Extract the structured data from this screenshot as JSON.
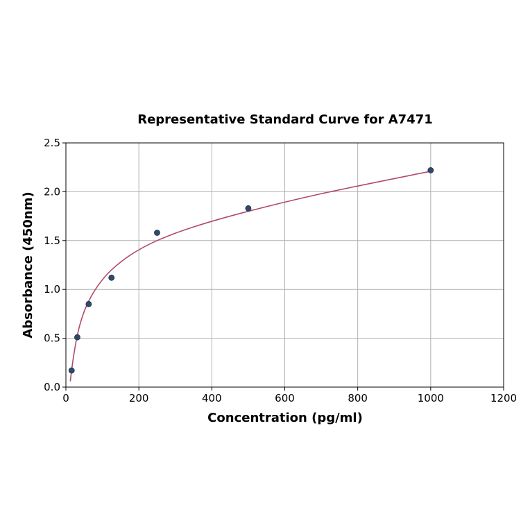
{
  "chart_data": {
    "type": "scatter",
    "title": "Representative Standard Curve for A7471",
    "xlabel": "Concentration (pg/ml)",
    "ylabel": "Absorbance (450nm)",
    "xlim": [
      0,
      1200
    ],
    "ylim": [
      0,
      2.5
    ],
    "xticks": [
      "0",
      "200",
      "400",
      "600",
      "800",
      "1000",
      "1200"
    ],
    "yticks": [
      "0.0",
      "0.5",
      "1.0",
      "1.5",
      "2.0",
      "2.5"
    ],
    "grid": true,
    "legend": "none",
    "series": [
      {
        "points": [
          {
            "x": 15.6,
            "y": 0.17
          },
          {
            "x": 31.25,
            "y": 0.51
          },
          {
            "x": 62.5,
            "y": 0.85
          },
          {
            "x": 125,
            "y": 1.12
          },
          {
            "x": 250,
            "y": 1.58
          },
          {
            "x": 500,
            "y": 1.83
          },
          {
            "x": 1000,
            "y": 2.22
          }
        ],
        "marker_color": "#2e4a6b"
      }
    ],
    "fit_curve": {
      "color": "#b04a6a",
      "x": [
        12,
        20,
        31.25,
        45,
        62.5,
        90,
        125,
        180,
        250,
        350,
        500,
        700,
        1000
      ],
      "y": [
        0.06,
        0.29,
        0.53,
        0.72,
        0.88,
        1.05,
        1.2,
        1.36,
        1.5,
        1.64,
        1.8,
        1.98,
        2.21
      ]
    }
  }
}
